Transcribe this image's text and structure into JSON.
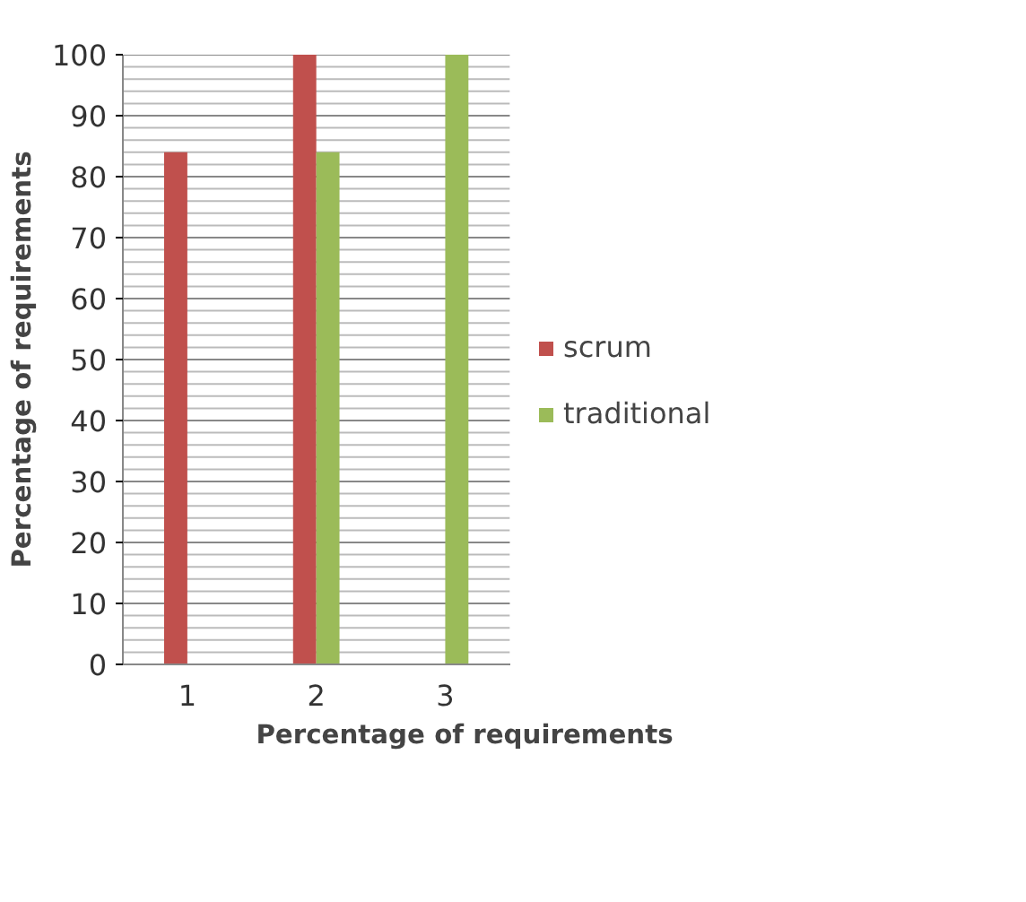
{
  "chart_data": {
    "type": "bar",
    "xlabel": "Percentage of requirements",
    "ylabel": "Percentage of requirements",
    "categories": [
      "1",
      "2",
      "3"
    ],
    "series": [
      {
        "name": "scrum",
        "color": "#c0504d",
        "values": [
          84,
          100,
          0
        ]
      },
      {
        "name": "traditional",
        "color": "#9bbb59",
        "values": [
          0,
          84,
          100
        ]
      }
    ],
    "ylim": [
      0,
      100
    ],
    "yticks": [
      0,
      10,
      20,
      30,
      40,
      50,
      60,
      70,
      80,
      90,
      100
    ],
    "grid": "y",
    "legend": "right"
  }
}
